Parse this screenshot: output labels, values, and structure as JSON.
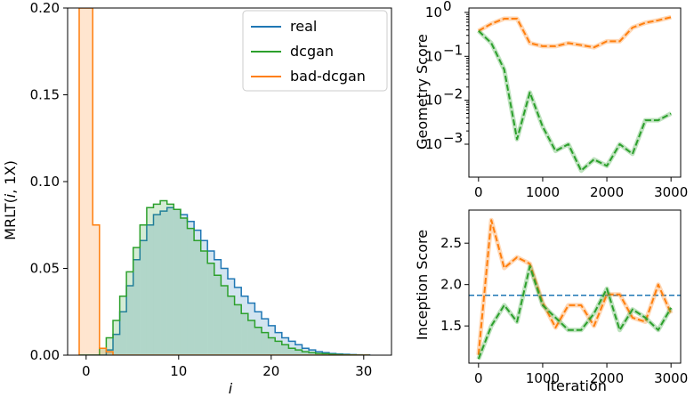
{
  "colors": {
    "real": "#1f77b4",
    "dcgan": "#2ca02c",
    "bad_dcgan": "#ff7f0e",
    "reference_line": "#1f77b4"
  },
  "chart_data": [
    {
      "id": "mrlt",
      "type": "histogram",
      "title": "",
      "xlabel": "i",
      "ylabel": "MRLT(i, 1X)",
      "ylabel_parts": {
        "prefix": "MRLT(",
        "italic": "i",
        "suffix": ", 1X)"
      },
      "xlim": [
        -2,
        33
      ],
      "ylim": [
        0,
        0.2
      ],
      "xticks": [
        0,
        10,
        20,
        30
      ],
      "xtick_labels": [
        "0",
        "10",
        "20",
        "30"
      ],
      "yticks": [
        0.0,
        0.05,
        0.1,
        0.15,
        0.2
      ],
      "ytick_labels": [
        "0.00",
        "0.05",
        "0.10",
        "0.15",
        "0.20"
      ],
      "bin_start": -0.75,
      "bin_width": 0.73,
      "legend": {
        "placement": "top-right",
        "entries": [
          "real",
          "dcgan",
          "bad-dcgan"
        ]
      },
      "series": [
        {
          "name": "real",
          "color_key": "real",
          "values": [
            0,
            0,
            0,
            0,
            0.003,
            0.012,
            0.025,
            0.04,
            0.055,
            0.066,
            0.075,
            0.081,
            0.083,
            0.085,
            0.084,
            0.081,
            0.077,
            0.072,
            0.066,
            0.06,
            0.055,
            0.05,
            0.044,
            0.039,
            0.034,
            0.03,
            0.025,
            0.021,
            0.017,
            0.013,
            0.01,
            0.008,
            0.006,
            0.004,
            0.003,
            0.002,
            0.0015,
            0.001,
            0.0007,
            0.0005,
            0.0003,
            0.0002,
            0.0001
          ]
        },
        {
          "name": "dcgan",
          "color_key": "dcgan",
          "values": [
            0,
            0,
            0,
            0.004,
            0.01,
            0.02,
            0.034,
            0.048,
            0.062,
            0.075,
            0.085,
            0.087,
            0.089,
            0.087,
            0.084,
            0.079,
            0.073,
            0.066,
            0.06,
            0.053,
            0.046,
            0.04,
            0.034,
            0.029,
            0.024,
            0.02,
            0.016,
            0.013,
            0.01,
            0.008,
            0.006,
            0.004,
            0.003,
            0.002,
            0.0015,
            0.001,
            0.0008,
            0.0005,
            0.0003,
            0.0002,
            0.0001,
            0,
            0
          ]
        },
        {
          "name": "bad-dcgan",
          "color_key": "bad_dcgan",
          "values": [
            0.2,
            0.2,
            0.075,
            0.004,
            0.002,
            0,
            0,
            0,
            0,
            0,
            0,
            0,
            0,
            0,
            0,
            0,
            0,
            0,
            0,
            0,
            0,
            0,
            0,
            0,
            0,
            0,
            0,
            0,
            0,
            0,
            0,
            0,
            0,
            0,
            0,
            0,
            0,
            0,
            0,
            0,
            0,
            0,
            0
          ]
        }
      ]
    },
    {
      "id": "geometry",
      "type": "line",
      "title": "",
      "xlabel": "",
      "ylabel": "Geometry Score",
      "yscale": "log",
      "xlim": [
        -150,
        3150
      ],
      "ylim_log10": [
        -3.75,
        0.1
      ],
      "xticks": [
        0,
        1000,
        2000,
        3000
      ],
      "xtick_labels": [
        "0",
        "1000",
        "2000",
        "3000"
      ],
      "yticks_log10": [
        -3,
        -2,
        -1,
        0
      ],
      "ytick_label_base": "10",
      "ytick_label_exponents": [
        "−3",
        "−2",
        "−1",
        "0"
      ],
      "x": [
        0,
        200,
        400,
        600,
        800,
        1000,
        1200,
        1400,
        1600,
        1800,
        2000,
        2200,
        2400,
        2600,
        2800,
        3000
      ],
      "series": [
        {
          "name": "bad-dcgan",
          "color_key": "bad_dcgan",
          "style": "dashed",
          "values": [
            0.38,
            0.55,
            0.72,
            0.72,
            0.2,
            0.17,
            0.17,
            0.2,
            0.18,
            0.16,
            0.22,
            0.22,
            0.45,
            0.58,
            0.66,
            0.78
          ]
        },
        {
          "name": "dcgan",
          "color_key": "dcgan",
          "style": "dashed",
          "values": [
            0.38,
            0.2,
            0.05,
            0.0013,
            0.015,
            0.0025,
            0.0007,
            0.001,
            0.00025,
            0.00045,
            0.00032,
            0.001,
            0.0006,
            0.0035,
            0.0035,
            0.005
          ]
        }
      ]
    },
    {
      "id": "inception",
      "type": "line",
      "title": "",
      "xlabel": "Iteration",
      "ylabel": "Inception Score",
      "xlim": [
        -150,
        3150
      ],
      "ylim": [
        1.05,
        2.9
      ],
      "xticks": [
        0,
        1000,
        2000,
        3000
      ],
      "xtick_labels": [
        "0",
        "1000",
        "2000",
        "3000"
      ],
      "yticks": [
        1.5,
        2.0,
        2.5
      ],
      "ytick_labels": [
        "1.5",
        "2.0",
        "2.5"
      ],
      "x": [
        0,
        200,
        400,
        600,
        800,
        1000,
        1200,
        1400,
        1600,
        1800,
        2000,
        2200,
        2400,
        2600,
        2800,
        3000
      ],
      "reference_line": {
        "y": 1.87,
        "color_key": "reference_line",
        "style": "dashed"
      },
      "series": [
        {
          "name": "bad-dcgan",
          "color_key": "bad_dcgan",
          "style": "dashed",
          "values": [
            1.15,
            2.78,
            2.2,
            2.33,
            2.25,
            1.78,
            1.48,
            1.75,
            1.75,
            1.5,
            1.88,
            1.88,
            1.6,
            1.55,
            2.0,
            1.65
          ]
        },
        {
          "name": "dcgan",
          "color_key": "dcgan",
          "style": "dashed",
          "values": [
            1.1,
            1.5,
            1.75,
            1.55,
            2.22,
            1.75,
            1.6,
            1.45,
            1.45,
            1.65,
            1.95,
            1.45,
            1.7,
            1.6,
            1.45,
            1.72
          ]
        }
      ]
    }
  ]
}
